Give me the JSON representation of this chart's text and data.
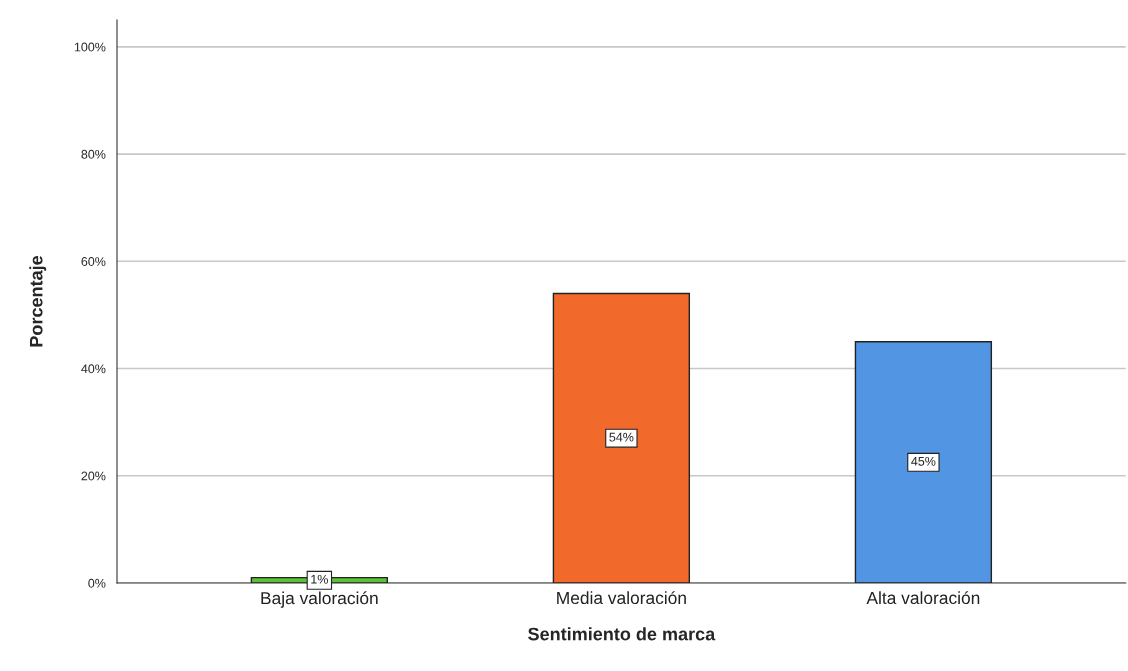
{
  "chart_data": {
    "type": "bar",
    "xlabel": "Sentimiento de marca",
    "ylabel": "Porcentaje",
    "categories": [
      "Baja valoración",
      "Media valoración",
      "Alta valoración"
    ],
    "values": [
      1,
      54,
      45
    ],
    "colors": [
      "#5ac13a",
      "#f2692c",
      "#5295e3"
    ],
    "value_labels": [
      "1%",
      "54%",
      "45%"
    ],
    "ylim": [
      0,
      105
    ],
    "yticks": [
      {
        "value": 0,
        "label": "0%"
      },
      {
        "value": 20,
        "label": "20%"
      },
      {
        "value": 40,
        "label": "40%"
      },
      {
        "value": 60,
        "label": "60%"
      },
      {
        "value": 80,
        "label": "80%"
      },
      {
        "value": 100,
        "label": "100%"
      }
    ],
    "grid": "y",
    "legend": false
  }
}
